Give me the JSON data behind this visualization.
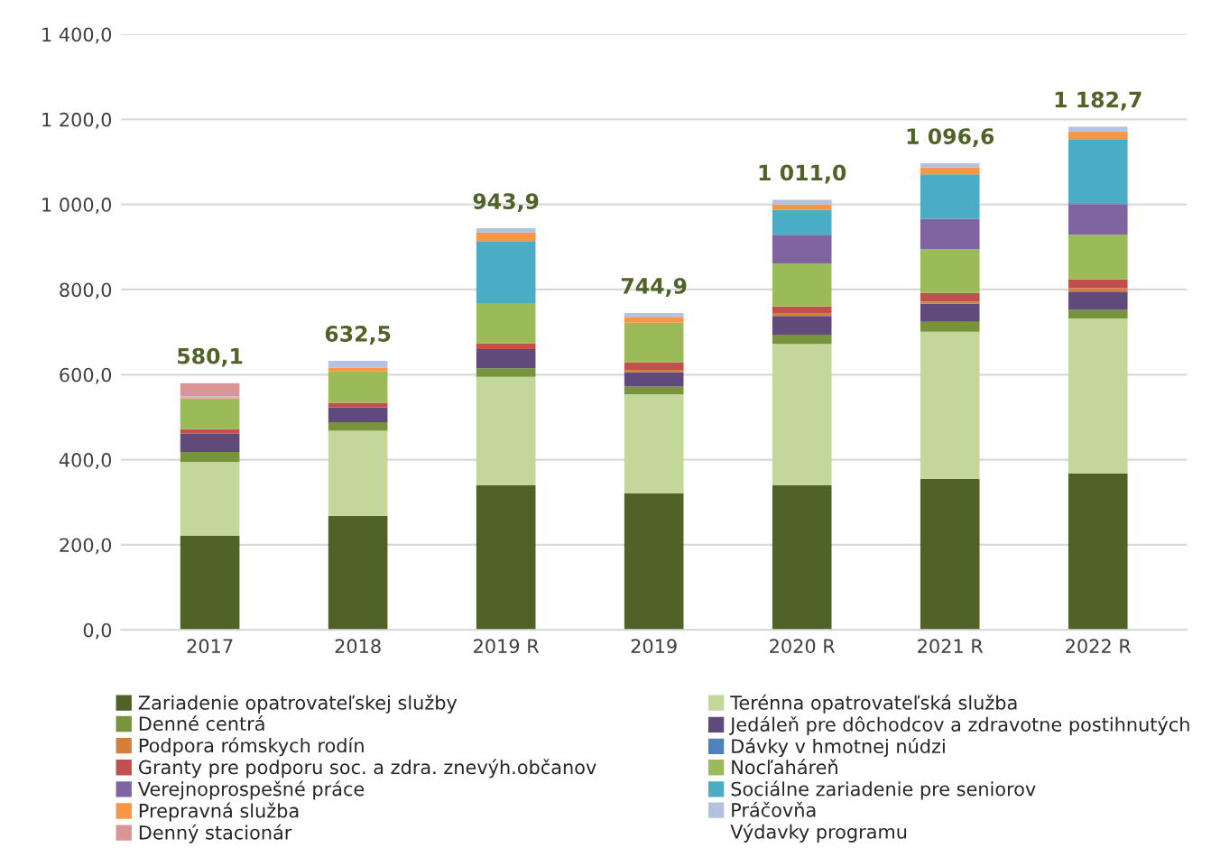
{
  "chart_data": {
    "type": "bar",
    "stacked": true,
    "categories": [
      "2017",
      "2018",
      "2019 R",
      "2019",
      "2020 R",
      "2021 R",
      "2022 R"
    ],
    "series": [
      {
        "name": "Zariadenie opatrovateľskej služby",
        "color": "#4f6228",
        "values": [
          221,
          268,
          340,
          321,
          340,
          355,
          368
        ]
      },
      {
        "name": "Terénna opatrovateľská služba",
        "color": "#c4d79b",
        "values": [
          174,
          200,
          255,
          233,
          332,
          346,
          364
        ]
      },
      {
        "name": "Denné centrá",
        "color": "#77933c",
        "values": [
          23,
          20,
          20,
          18,
          22,
          23,
          20
        ]
      },
      {
        "name": "Jedáleň pre dôchodcov a zdravotne postihnutých",
        "color": "#604a7b",
        "values": [
          43,
          35,
          45,
          34,
          44,
          43,
          43
        ]
      },
      {
        "name": "Podpora rómskych rodín",
        "color": "#d2803c",
        "values": [
          0,
          0,
          0,
          5,
          7,
          5,
          8
        ]
      },
      {
        "name": "Dávky v hmotnej núdzi",
        "color": "#4f81bd",
        "values": [
          0,
          0,
          0,
          0,
          0,
          0,
          0
        ]
      },
      {
        "name": "Granty pre podporu soc. a zdra. znevýh.občanov",
        "color": "#c0504d",
        "values": [
          11,
          11,
          14,
          18,
          15,
          20,
          21
        ]
      },
      {
        "name": "Nocľaháreň",
        "color": "#9bbb59",
        "values": [
          69.1,
          73.5,
          93.9,
          92.9,
          101,
          102.6,
          104.7
        ]
      },
      {
        "name": "Verejnoprospešné práce",
        "color": "#8064a2",
        "values": [
          0,
          0,
          0,
          0,
          68,
          72,
          72
        ]
      },
      {
        "name": "Sociálne zariadenie pre seniorov",
        "color": "#4bacc6",
        "values": [
          0,
          0,
          146,
          0,
          58,
          104,
          153
        ]
      },
      {
        "name": "Prepravná služba",
        "color": "#f79646",
        "values": [
          4,
          9,
          20,
          14,
          13,
          16,
          18
        ]
      },
      {
        "name": "Práčovňa",
        "color": "#b3c2e0",
        "values": [
          4,
          16,
          10,
          9,
          11,
          10,
          11
        ]
      },
      {
        "name": "Denný stacionár",
        "color": "#d99694",
        "values": [
          31,
          0,
          0,
          0,
          0,
          0,
          0
        ]
      }
    ],
    "totals": [
      "580,1",
      "632,5",
      "943,9",
      "744,9",
      "1 011,0",
      "1 096,6",
      "1 182,7"
    ],
    "annotations": [
      "Výdavky programu"
    ],
    "ylim": [
      0,
      1400
    ],
    "yticks": [
      {
        "value": 0,
        "label": "0,0"
      },
      {
        "value": 200,
        "label": "200,0"
      },
      {
        "value": 400,
        "label": "400,0"
      },
      {
        "value": 600,
        "label": "600,0"
      },
      {
        "value": 800,
        "label": "800,0"
      },
      {
        "value": 1000,
        "label": "1 000,0"
      },
      {
        "value": 1200,
        "label": "1 200,0"
      },
      {
        "value": 1400,
        "label": "1 400,0"
      }
    ],
    "grid": "y",
    "legend": "bottom"
  }
}
